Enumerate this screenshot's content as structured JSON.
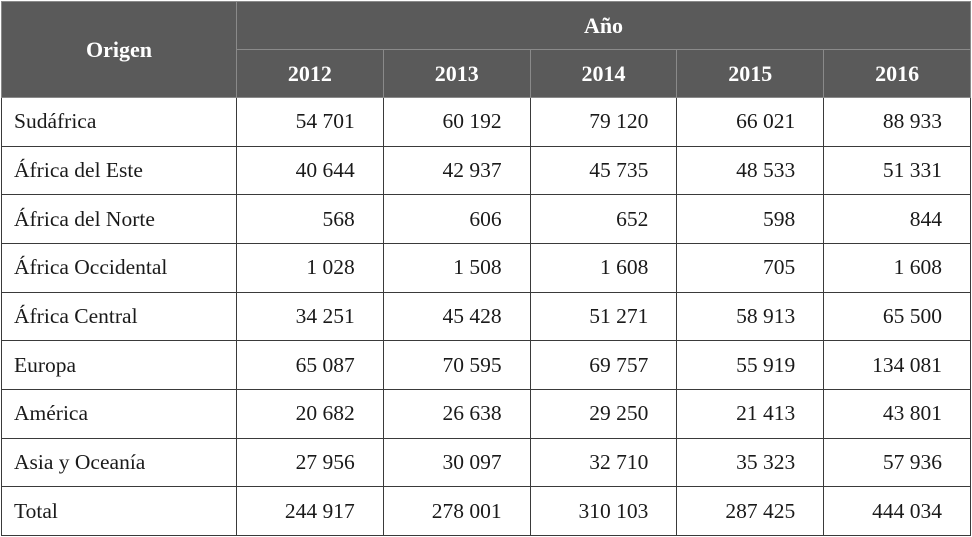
{
  "header": {
    "origin_label": "Origen",
    "year_label": "Año",
    "years": [
      "2012",
      "2013",
      "2014",
      "2015",
      "2016"
    ]
  },
  "rows": [
    {
      "label": "Sudáfrica",
      "values": [
        "54 701",
        "60 192",
        "79 120",
        "66 021",
        "88 933"
      ]
    },
    {
      "label": "África del Este",
      "values": [
        "40 644",
        "42 937",
        "45 735",
        "48 533",
        "51 331"
      ]
    },
    {
      "label": "África del Norte",
      "values": [
        "568",
        "606",
        "652",
        "598",
        "844"
      ]
    },
    {
      "label": "África Occidental",
      "values": [
        "1 028",
        "1 508",
        "1 608",
        "705",
        "1 608"
      ]
    },
    {
      "label": "África Central",
      "values": [
        "34 251",
        "45 428",
        "51 271",
        "58 913",
        "65 500"
      ]
    },
    {
      "label": "Europa",
      "values": [
        "65 087",
        "70 595",
        "69 757",
        "55 919",
        "134 081"
      ]
    },
    {
      "label": "América",
      "values": [
        "20 682",
        "26 638",
        "29 250",
        "21 413",
        "43 801"
      ]
    },
    {
      "label": "Asia y Oceanía",
      "values": [
        "27 956",
        "30 097",
        "32 710",
        "35 323",
        "57 936"
      ]
    },
    {
      "label": "Total",
      "values": [
        "244 917",
        "278 001",
        "310 103",
        "287 425",
        "444 034"
      ]
    }
  ]
}
